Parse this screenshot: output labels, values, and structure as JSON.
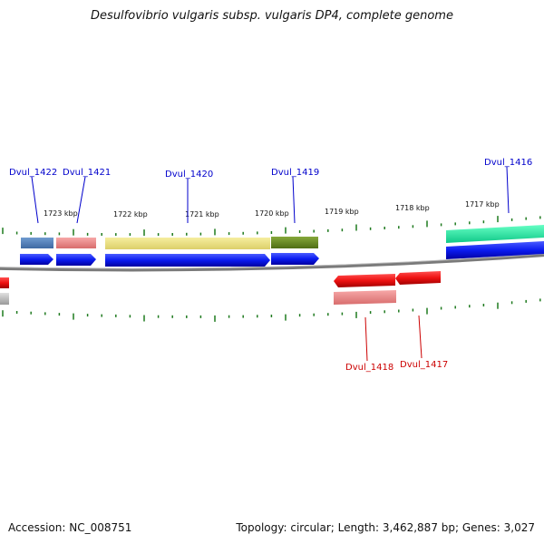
{
  "title": "Desulfovibrio vulgaris subsp. vulgaris DP4, complete genome",
  "footer": {
    "accession": "Accession: NC_008751",
    "summary": "Topology: circular; Length: 3,462,887 bp; Genes: 3,027"
  },
  "scale_labels": [
    "1723 kbp",
    "1722 kbp",
    "1721 kbp",
    "1720 kbp",
    "1719 kbp",
    "1718 kbp",
    "1717 kbp"
  ],
  "genes_forward": [
    {
      "label": "Dvul_1422",
      "color": "#0000cc"
    },
    {
      "label": "Dvul_1421",
      "color": "#0000cc"
    },
    {
      "label": "Dvul_1420",
      "color": "#0000cc"
    },
    {
      "label": "Dvul_1419",
      "color": "#0000cc"
    },
    {
      "label": "Dvul_1416",
      "color": "#0000cc"
    }
  ],
  "genes_reverse": [
    {
      "label": "Dvul_1418",
      "color": "#cc0000"
    },
    {
      "label": "Dvul_1417",
      "color": "#cc0000"
    }
  ],
  "colors": {
    "backbone": "#7a7a7a",
    "tick": "#1e7a1e",
    "cds_forward": "#0b1bf0",
    "cds_reverse": "#ee1111",
    "feature_steelblue": "#5585bf",
    "feature_pink": "#ee8f8f",
    "feature_khaki": "#efe38c",
    "feature_olive": "#6b8e23",
    "feature_springgreen": "#22e8a0"
  }
}
